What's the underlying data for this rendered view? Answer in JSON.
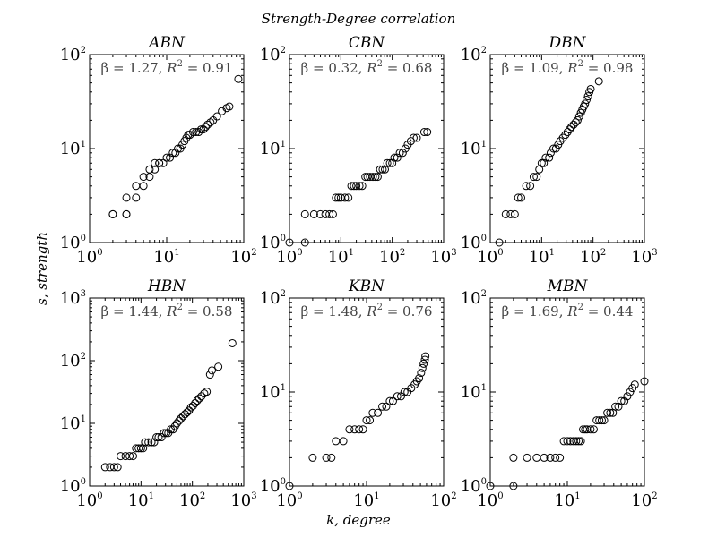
{
  "figure": {
    "suptitle": "Strength-Degree correlation",
    "xlabel": "k, degree",
    "ylabel": "s, strength"
  },
  "chart_data": [
    {
      "type": "scatter",
      "title": "ABN",
      "annotation": {
        "beta": "1.27",
        "r2": "0.91"
      },
      "xscale": "log",
      "yscale": "log",
      "xlim": [
        1,
        100
      ],
      "ylim": [
        1,
        100
      ],
      "points": [
        [
          2,
          2
        ],
        [
          2,
          2
        ],
        [
          3,
          2
        ],
        [
          3,
          2
        ],
        [
          3,
          3
        ],
        [
          4,
          3
        ],
        [
          4,
          4
        ],
        [
          5,
          4
        ],
        [
          5,
          5
        ],
        [
          6,
          5
        ],
        [
          6,
          6
        ],
        [
          7,
          6
        ],
        [
          7,
          7
        ],
        [
          8,
          7
        ],
        [
          8,
          7
        ],
        [
          9,
          7
        ],
        [
          10,
          8
        ],
        [
          11,
          8
        ],
        [
          12,
          9
        ],
        [
          13,
          9
        ],
        [
          14,
          10
        ],
        [
          15,
          10
        ],
        [
          16,
          11
        ],
        [
          17,
          12
        ],
        [
          18,
          13
        ],
        [
          19,
          14
        ],
        [
          20,
          14
        ],
        [
          22,
          15
        ],
        [
          24,
          15
        ],
        [
          26,
          15
        ],
        [
          28,
          16
        ],
        [
          30,
          16
        ],
        [
          32,
          17
        ],
        [
          34,
          18
        ],
        [
          37,
          19
        ],
        [
          40,
          20
        ],
        [
          45,
          22
        ],
        [
          52,
          25
        ],
        [
          60,
          27
        ],
        [
          65,
          28
        ],
        [
          85,
          55
        ]
      ]
    },
    {
      "type": "scatter",
      "title": "CBN",
      "annotation": {
        "beta": "0.32",
        "r2": "0.68"
      },
      "xscale": "log",
      "yscale": "log",
      "xlim": [
        1,
        1000
      ],
      "ylim": [
        1,
        100
      ],
      "points": [
        [
          1,
          1
        ],
        [
          2,
          1
        ],
        [
          2,
          2
        ],
        [
          3,
          2
        ],
        [
          4,
          2
        ],
        [
          5,
          2
        ],
        [
          6,
          2
        ],
        [
          7,
          2
        ],
        [
          8,
          3
        ],
        [
          9,
          3
        ],
        [
          10,
          3
        ],
        [
          12,
          3
        ],
        [
          14,
          3
        ],
        [
          16,
          4
        ],
        [
          18,
          4
        ],
        [
          20,
          4
        ],
        [
          23,
          4
        ],
        [
          26,
          4
        ],
        [
          30,
          5
        ],
        [
          33,
          5
        ],
        [
          37,
          5
        ],
        [
          42,
          5
        ],
        [
          47,
          5
        ],
        [
          52,
          5
        ],
        [
          58,
          6
        ],
        [
          65,
          6
        ],
        [
          72,
          6
        ],
        [
          80,
          7
        ],
        [
          90,
          7
        ],
        [
          100,
          7
        ],
        [
          110,
          8
        ],
        [
          125,
          8
        ],
        [
          140,
          9
        ],
        [
          160,
          9
        ],
        [
          180,
          10
        ],
        [
          200,
          11
        ],
        [
          230,
          12
        ],
        [
          260,
          13
        ],
        [
          300,
          13
        ],
        [
          420,
          15
        ],
        [
          480,
          15
        ]
      ]
    },
    {
      "type": "scatter",
      "title": "DBN",
      "annotation": {
        "beta": "1.09",
        "r2": "0.98"
      },
      "xscale": "log",
      "yscale": "log",
      "xlim": [
        1,
        1000
      ],
      "ylim": [
        1,
        100
      ],
      "points": [
        [
          1.5,
          1
        ],
        [
          2,
          2
        ],
        [
          2.5,
          2
        ],
        [
          3,
          2
        ],
        [
          3.5,
          3
        ],
        [
          4,
          3
        ],
        [
          5,
          4
        ],
        [
          6,
          4
        ],
        [
          7,
          5
        ],
        [
          8,
          5
        ],
        [
          9,
          6
        ],
        [
          10,
          7
        ],
        [
          11,
          7
        ],
        [
          12,
          8
        ],
        [
          14,
          8
        ],
        [
          15,
          9
        ],
        [
          17,
          10
        ],
        [
          19,
          10
        ],
        [
          21,
          11
        ],
        [
          23,
          12
        ],
        [
          26,
          13
        ],
        [
          29,
          14
        ],
        [
          32,
          15
        ],
        [
          35,
          16
        ],
        [
          38,
          17
        ],
        [
          42,
          18
        ],
        [
          46,
          19
        ],
        [
          50,
          20
        ],
        [
          54,
          22
        ],
        [
          58,
          24
        ],
        [
          62,
          26
        ],
        [
          66,
          28
        ],
        [
          70,
          30
        ],
        [
          75,
          33
        ],
        [
          80,
          36
        ],
        [
          85,
          40
        ],
        [
          90,
          43
        ],
        [
          130,
          52
        ]
      ]
    },
    {
      "type": "scatter",
      "title": "HBN",
      "annotation": {
        "beta": "1.44",
        "r2": "0.58"
      },
      "xscale": "log",
      "yscale": "log",
      "xlim": [
        1,
        1000
      ],
      "ylim": [
        1,
        1000
      ],
      "points": [
        [
          2,
          2
        ],
        [
          2.5,
          2
        ],
        [
          3,
          2
        ],
        [
          3.5,
          2
        ],
        [
          4,
          3
        ],
        [
          5,
          3
        ],
        [
          6,
          3
        ],
        [
          7,
          3
        ],
        [
          8,
          4
        ],
        [
          9,
          4
        ],
        [
          10,
          4
        ],
        [
          11,
          4
        ],
        [
          12,
          5
        ],
        [
          14,
          5
        ],
        [
          16,
          5
        ],
        [
          18,
          5
        ],
        [
          20,
          6
        ],
        [
          22,
          6
        ],
        [
          25,
          6
        ],
        [
          28,
          7
        ],
        [
          31,
          7
        ],
        [
          34,
          7
        ],
        [
          38,
          8
        ],
        [
          42,
          8
        ],
        [
          46,
          9
        ],
        [
          50,
          10
        ],
        [
          55,
          11
        ],
        [
          60,
          12
        ],
        [
          66,
          13
        ],
        [
          72,
          14
        ],
        [
          79,
          15
        ],
        [
          86,
          16
        ],
        [
          94,
          18
        ],
        [
          103,
          19
        ],
        [
          113,
          21
        ],
        [
          124,
          23
        ],
        [
          136,
          25
        ],
        [
          150,
          27
        ],
        [
          170,
          30
        ],
        [
          190,
          32
        ],
        [
          220,
          60
        ],
        [
          240,
          70
        ],
        [
          320,
          80
        ],
        [
          600,
          190
        ]
      ]
    },
    {
      "type": "scatter",
      "title": "KBN",
      "annotation": {
        "beta": "1.48",
        "r2": "0.76"
      },
      "xscale": "log",
      "yscale": "log",
      "xlim": [
        1,
        100
      ],
      "ylim": [
        1,
        100
      ],
      "points": [
        [
          1,
          1
        ],
        [
          2,
          2
        ],
        [
          3,
          2
        ],
        [
          3.5,
          2
        ],
        [
          4,
          3
        ],
        [
          5,
          3
        ],
        [
          6,
          4
        ],
        [
          7,
          4
        ],
        [
          8,
          4
        ],
        [
          9,
          4
        ],
        [
          10,
          5
        ],
        [
          11,
          5
        ],
        [
          12,
          6
        ],
        [
          14,
          6
        ],
        [
          16,
          7
        ],
        [
          18,
          7
        ],
        [
          20,
          8
        ],
        [
          22,
          8
        ],
        [
          25,
          9
        ],
        [
          28,
          9
        ],
        [
          31,
          10
        ],
        [
          34,
          10
        ],
        [
          38,
          11
        ],
        [
          42,
          12
        ],
        [
          45,
          13
        ],
        [
          48,
          14
        ],
        [
          51,
          16
        ],
        [
          53,
          18
        ],
        [
          55,
          20
        ],
        [
          57,
          22
        ],
        [
          58,
          24
        ]
      ]
    },
    {
      "type": "scatter",
      "title": "MBN",
      "annotation": {
        "beta": "1.69",
        "r2": "0.44"
      },
      "xscale": "log",
      "yscale": "log",
      "xlim": [
        1,
        100
      ],
      "ylim": [
        1,
        100
      ],
      "points": [
        [
          1,
          1
        ],
        [
          2,
          1
        ],
        [
          2,
          2
        ],
        [
          3,
          2
        ],
        [
          4,
          2
        ],
        [
          5,
          2
        ],
        [
          6,
          2
        ],
        [
          7,
          2
        ],
        [
          8,
          2
        ],
        [
          9,
          3
        ],
        [
          10,
          3
        ],
        [
          11,
          3
        ],
        [
          12,
          3
        ],
        [
          13,
          3
        ],
        [
          14,
          3
        ],
        [
          15,
          3
        ],
        [
          16,
          4
        ],
        [
          17,
          4
        ],
        [
          18,
          4
        ],
        [
          20,
          4
        ],
        [
          22,
          4
        ],
        [
          24,
          5
        ],
        [
          26,
          5
        ],
        [
          28,
          5
        ],
        [
          30,
          5
        ],
        [
          33,
          6
        ],
        [
          36,
          6
        ],
        [
          39,
          6
        ],
        [
          42,
          7
        ],
        [
          46,
          7
        ],
        [
          50,
          8
        ],
        [
          55,
          8
        ],
        [
          60,
          9
        ],
        [
          65,
          10
        ],
        [
          70,
          11
        ],
        [
          75,
          12
        ],
        [
          100,
          13
        ]
      ]
    }
  ]
}
